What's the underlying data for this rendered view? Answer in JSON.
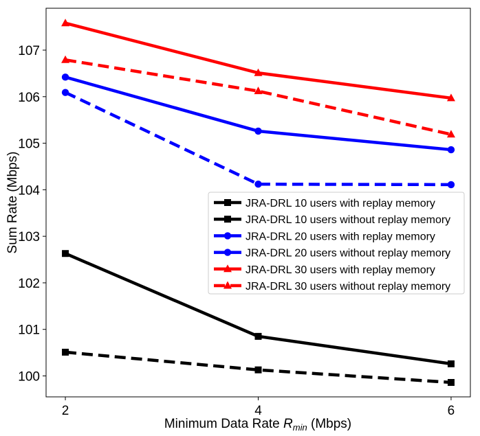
{
  "chart_data": {
    "type": "line",
    "title": "",
    "xlabel_prefix": "Minimum Data Rate ",
    "xlabel_var": "R",
    "xlabel_sub": "min",
    "xlabel_suffix": " (Mbps)",
    "ylabel": "Sum Rate (Mbps)",
    "x": [
      2,
      4,
      6
    ],
    "x_ticks": [
      2,
      4,
      6
    ],
    "y_ticks": [
      100,
      101,
      102,
      103,
      104,
      105,
      106,
      107
    ],
    "xlim": [
      1.8,
      6.2
    ],
    "ylim": [
      99.55,
      107.9
    ],
    "grid": false,
    "legend_position": "center-right",
    "series": [
      {
        "name": "JRA-DRL 10 users with replay memory",
        "values": [
          102.63,
          100.85,
          100.26
        ],
        "color": "#000000",
        "dashed": false,
        "marker": "square"
      },
      {
        "name": "JRA-DRL 10 users without replay memory",
        "values": [
          100.51,
          100.13,
          99.86
        ],
        "color": "#000000",
        "dashed": true,
        "marker": "square"
      },
      {
        "name": "JRA-DRL 20 users with replay memory",
        "values": [
          106.42,
          105.26,
          104.86
        ],
        "color": "#0000ff",
        "dashed": false,
        "marker": "circle"
      },
      {
        "name": "JRA-DRL 20 users without replay memory",
        "values": [
          106.09,
          104.12,
          104.11
        ],
        "color": "#0000ff",
        "dashed": true,
        "marker": "circle"
      },
      {
        "name": "JRA-DRL 30 users with replay memory",
        "values": [
          107.58,
          106.51,
          105.97
        ],
        "color": "#ff0000",
        "dashed": false,
        "marker": "triangle"
      },
      {
        "name": "JRA-DRL 30 users without replay memory",
        "values": [
          106.79,
          106.12,
          105.19
        ],
        "color": "#ff0000",
        "dashed": true,
        "marker": "triangle"
      }
    ]
  }
}
